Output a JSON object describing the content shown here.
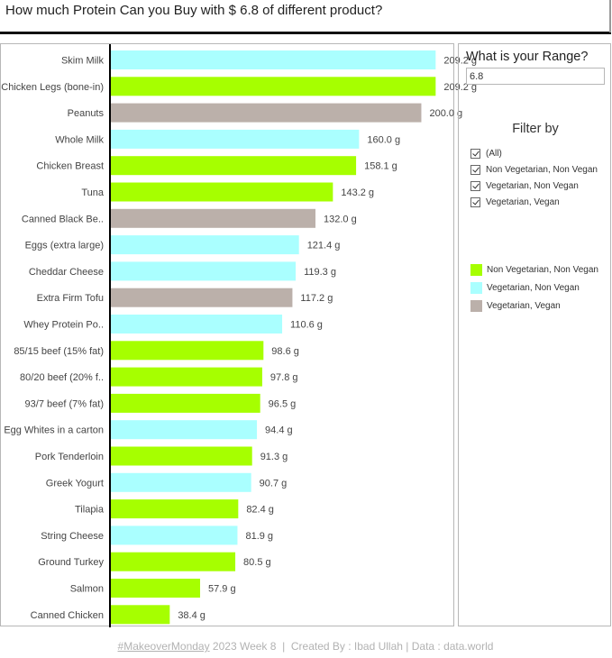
{
  "title": "How much Protein Can you Buy with $ 6.8 of different product?",
  "range": {
    "label": "What is your Range?",
    "value": "6.8"
  },
  "filter": {
    "title": "Filter by",
    "items": [
      {
        "label": "(All)",
        "checked": true
      },
      {
        "label": "Non Vegetarian, Non Vegan",
        "checked": true
      },
      {
        "label": "Vegetarian, Non Vegan",
        "checked": true
      },
      {
        "label": "Vegetarian, Vegan",
        "checked": true
      }
    ]
  },
  "legend": [
    {
      "label": "Non Vegetarian, Non Vegan",
      "color": "#a6ff00"
    },
    {
      "label": "Vegetarian, Non Vegan",
      "color": "#aaffff"
    },
    {
      "label": "Vegetarian, Vegan",
      "color": "#bbb0aa"
    }
  ],
  "footer": {
    "tag": "#MakeoverMonday",
    "rest": " 2023 Week 8  |  Created By : Ibad Ullah | Data : data.world"
  },
  "chart_data": {
    "type": "bar",
    "orientation": "horizontal",
    "xlim": [
      0,
      220
    ],
    "categories": [
      "Skim Milk",
      "Chicken Legs (bone-in)",
      "Peanuts",
      "Whole Milk",
      "Chicken Breast",
      "Tuna",
      "Canned Black Be..",
      "Eggs (extra large)",
      "Cheddar Cheese",
      "Extra Firm Tofu",
      "Whey Protein Po..",
      "85/15 beef (15% fat)",
      "80/20 beef (20% f..",
      "93/7 beef (7% fat)",
      "Egg Whites in a carton",
      "Pork Tenderloin",
      "Greek Yogurt",
      "Tilapia",
      "String Cheese",
      "Ground Turkey",
      "Salmon",
      "Canned Chicken"
    ],
    "values": [
      209.2,
      209.2,
      200.0,
      160.0,
      158.1,
      143.2,
      132.0,
      121.4,
      119.3,
      117.2,
      110.6,
      98.6,
      97.8,
      96.5,
      94.4,
      91.3,
      90.7,
      82.4,
      81.9,
      80.5,
      57.9,
      38.4
    ],
    "value_labels": [
      "209.2 g",
      "209.2 g",
      "200.0 g",
      "160.0 g",
      "158.1 g",
      "143.2 g",
      "132.0 g",
      "121.4 g",
      "119.3 g",
      "117.2 g",
      "110.6 g",
      "98.6 g",
      "97.8 g",
      "96.5 g",
      "94.4 g",
      "91.3 g",
      "90.7 g",
      "82.4 g",
      "81.9 g",
      "80.5 g",
      "57.9 g",
      "38.4 g"
    ],
    "groups": [
      "Vegetarian, Non Vegan",
      "Non Vegetarian, Non Vegan",
      "Vegetarian, Vegan",
      "Vegetarian, Non Vegan",
      "Non Vegetarian, Non Vegan",
      "Non Vegetarian, Non Vegan",
      "Vegetarian, Vegan",
      "Vegetarian, Non Vegan",
      "Vegetarian, Non Vegan",
      "Vegetarian, Vegan",
      "Vegetarian, Non Vegan",
      "Non Vegetarian, Non Vegan",
      "Non Vegetarian, Non Vegan",
      "Non Vegetarian, Non Vegan",
      "Vegetarian, Non Vegan",
      "Non Vegetarian, Non Vegan",
      "Vegetarian, Non Vegan",
      "Non Vegetarian, Non Vegan",
      "Vegetarian, Non Vegan",
      "Non Vegetarian, Non Vegan",
      "Non Vegetarian, Non Vegan",
      "Non Vegetarian, Non Vegan"
    ],
    "colors": {
      "Non Vegetarian, Non Vegan": "#a6ff00",
      "Vegetarian, Non Vegan": "#aaffff",
      "Vegetarian, Vegan": "#bbb0aa"
    }
  }
}
